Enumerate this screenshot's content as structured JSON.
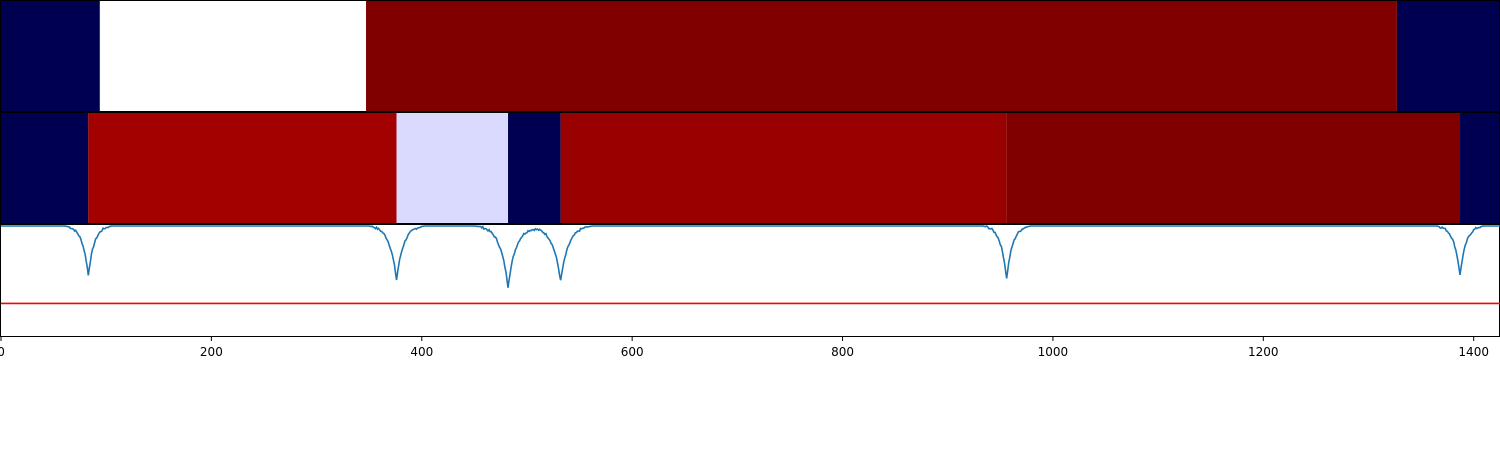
{
  "chart_data": {
    "type": "heatmap",
    "title": "",
    "xlabel": "",
    "ylabel": "",
    "xlim": [
      0,
      1425
    ],
    "grid": false,
    "x_ticks": [
      "0",
      "200",
      "400",
      "600",
      "800",
      "1000",
      "1200",
      "1400"
    ],
    "x_tick_values": [
      0,
      200,
      400,
      600,
      800,
      1000,
      1200,
      1400
    ],
    "segment_tracks": [
      {
        "segments": [
          {
            "start": 0,
            "end": 94,
            "color": "#000050"
          },
          {
            "start": 94,
            "end": 347,
            "color": "#ffffff"
          },
          {
            "start": 347,
            "end": 1327,
            "color": "#800000"
          },
          {
            "start": 1327,
            "end": 1425,
            "color": "#000050"
          }
        ]
      },
      {
        "segments": [
          {
            "start": 0,
            "end": 83,
            "color": "#000050"
          },
          {
            "start": 83,
            "end": 376,
            "color": "#a30000"
          },
          {
            "start": 376,
            "end": 482,
            "color": "#dadaff"
          },
          {
            "start": 482,
            "end": 532,
            "color": "#000050"
          },
          {
            "start": 532,
            "end": 956,
            "color": "#990000"
          },
          {
            "start": 956,
            "end": 1387,
            "color": "#800000"
          },
          {
            "start": 1387,
            "end": 1425,
            "color": "#000050"
          }
        ]
      }
    ],
    "line_series": {
      "color": "#1f77b4",
      "ylim": [
        0,
        1
      ],
      "baseline": 1.0,
      "dips": [
        {
          "center": 83,
          "depth": 0.45,
          "width": 6
        },
        {
          "center": 376,
          "depth": 0.49,
          "width": 7
        },
        {
          "center": 482,
          "depth": 0.55,
          "width": 8
        },
        {
          "center": 532,
          "depth": 0.5,
          "width": 8
        },
        {
          "center": 956,
          "depth": 0.48,
          "width": 6
        },
        {
          "center": 1387,
          "depth": 0.45,
          "width": 6
        }
      ]
    },
    "threshold": {
      "value": 0.3,
      "color": "#ff0000"
    }
  }
}
